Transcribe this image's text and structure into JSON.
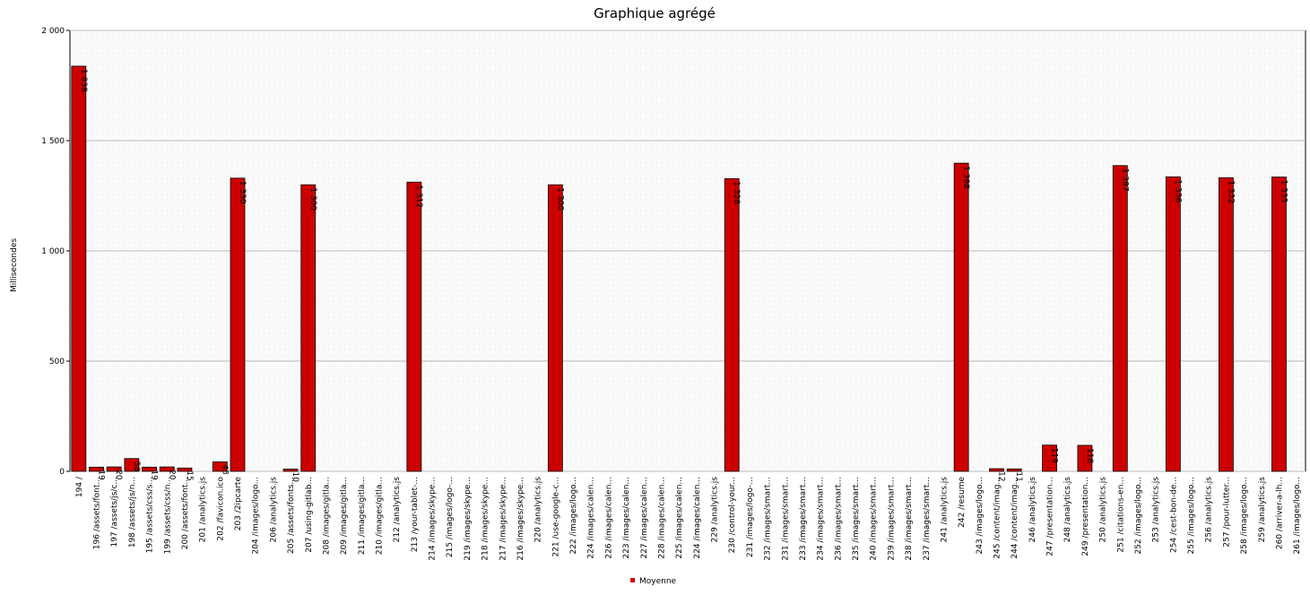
{
  "chart_data": {
    "type": "bar",
    "title": "Graphique agrégé",
    "y_label": "Millisecondes",
    "grid": true,
    "legend": "bottom",
    "categories": [
      "194 /",
      "196 /assets/font...",
      "197 /assets/js/c...",
      "198 /assets/js/n...",
      "195 /assets/css/s...",
      "199 /assets/css/n...",
      "200 /assets/font...",
      "201 /analytics.js",
      "202 /favicon.ico",
      "203 /2ipcarte",
      "204 /images/logo...",
      "206 /analytics.js",
      "205 /assets/fonts...",
      "207 /using-gitlab...",
      "208 /images/gitla...",
      "209 /images/gitla...",
      "211 /images/gitla...",
      "210 /images/gitla...",
      "212 /analytics.js",
      "213 /your-tablet-...",
      "214 /images/skype...",
      "215 /images/logo-...",
      "219 /images/skype...",
      "218 /images/skype...",
      "217 /images/skype...",
      "216 /images/skype...",
      "220 /analytics.js",
      "221 /use-google-c...",
      "222 /images/logo...",
      "224 /images/calen...",
      "226 /images/calen...",
      "223 /images/calen...",
      "227 /images/calen...",
      "228 /images/calen...",
      "225 /images/calen...",
      "224 /images/calen...",
      "229 /analytics.js",
      "230 /control-your...",
      "231 /images/logo-...",
      "232 /images/smart...",
      "231 /images/smart...",
      "233 /images/smart...",
      "234 /images/smart...",
      "236 /images/smart...",
      "235 /images/smart...",
      "240 /images/smart...",
      "239 /images/smart...",
      "238 /images/smart...",
      "237 /images/smart...",
      "241 /analytics.js",
      "242 /resume",
      "243 /images/logo...",
      "245 /content/imag...",
      "244 /content/imag...",
      "246 /analytics.js",
      "247 /presentation...",
      "248 /analytics.js",
      "249 /presentation...",
      "250 /analytics.js",
      "251 /citations-en...",
      "252 /images/logo...",
      "253 /analytics.js",
      "254 /cest-bon-de...",
      "255 /images/logo...",
      "256 /analytics.js",
      "257 /pour-lutter...",
      "258 /images/logo...",
      "259 /analytics.js",
      "260 /arriver-a-lh...",
      "261 /images/logo..."
    ],
    "series": [
      {
        "name": "Moyenne",
        "color": "#cc0000",
        "values": [
          1838,
          19,
          20,
          58,
          19,
          20,
          15,
          0,
          43,
          1330,
          0,
          0,
          10,
          1300,
          0,
          0,
          0,
          0,
          0,
          1312,
          0,
          0,
          0,
          0,
          0,
          0,
          0,
          1300,
          0,
          0,
          0,
          0,
          0,
          0,
          0,
          0,
          0,
          1328,
          0,
          0,
          0,
          0,
          0,
          0,
          0,
          0,
          0,
          0,
          0,
          0,
          1398,
          0,
          12,
          11,
          0,
          119,
          0,
          118,
          0,
          1387,
          0,
          0,
          1336,
          0,
          0,
          1332,
          0,
          0,
          1335,
          0
        ],
        "value_labels": [
          "1 838",
          "19",
          "20",
          "58",
          "19",
          "20",
          "15",
          null,
          "43",
          "1 330",
          null,
          null,
          "10",
          "1 300",
          null,
          null,
          null,
          null,
          null,
          "1 312",
          null,
          null,
          null,
          null,
          null,
          null,
          null,
          "1 300",
          null,
          null,
          null,
          null,
          null,
          null,
          null,
          null,
          null,
          "1 328",
          null,
          null,
          null,
          null,
          null,
          null,
          null,
          null,
          null,
          null,
          null,
          null,
          "1 398",
          null,
          "12",
          "11",
          null,
          "119",
          null,
          "118",
          null,
          "1 387",
          null,
          null,
          "1 336",
          null,
          null,
          "1 332",
          null,
          null,
          "1 335",
          null
        ]
      }
    ],
    "ylim": [
      0,
      2000
    ],
    "yticks": [
      {
        "value": 0,
        "label": "0"
      },
      {
        "value": 500,
        "label": "500"
      },
      {
        "value": 1000,
        "label": "1 000"
      },
      {
        "value": 1500,
        "label": "1 500"
      },
      {
        "value": 2000,
        "label": "2 000"
      }
    ]
  }
}
